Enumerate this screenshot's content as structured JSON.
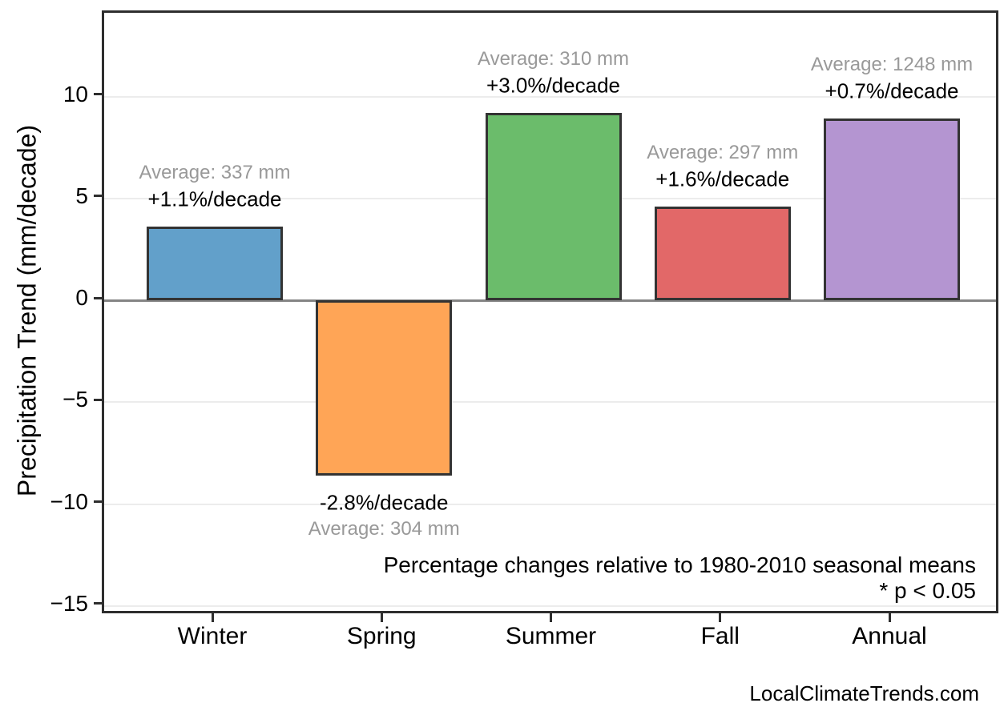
{
  "page": {
    "watermark": "LocalClimateTrends.com"
  },
  "chart_data": {
    "type": "bar",
    "title": "",
    "xlabel": "",
    "ylabel": "Precipitation Trend (mm/decade)",
    "categories": [
      "Winter",
      "Spring",
      "Summer",
      "Fall",
      "Annual"
    ],
    "values": [
      3.6,
      -8.6,
      9.2,
      4.6,
      8.9
    ],
    "units": "mm/decade",
    "averages_mm": [
      337,
      304,
      310,
      297,
      1248
    ],
    "pct_per_decade": [
      1.1,
      -2.8,
      3.0,
      1.6,
      0.7
    ],
    "avg_labels": [
      "Average: 337 mm",
      "Average: 304 mm",
      "Average: 310 mm",
      "Average: 297 mm",
      "Average: 1248 mm"
    ],
    "pct_labels": [
      "+1.1%/decade",
      "-2.8%/decade",
      "+3.0%/decade",
      "+1.6%/decade",
      "+0.7%/decade"
    ],
    "bar_colors": [
      "#62A0CA",
      "#FFA556",
      "#6BBC6B",
      "#E26868",
      "#B495D1"
    ],
    "bar_edge_color": "#333333",
    "yticks": [
      10,
      5,
      0,
      -5,
      -10,
      -15
    ],
    "ylim": [
      -15.4,
      14.1
    ],
    "grid": "horizontal major gridlines, light gray; gray zero line",
    "legend": "none",
    "annotations": [
      "Percentage changes relative to 1980-2010 seasonal means",
      "* p < 0.05"
    ]
  }
}
